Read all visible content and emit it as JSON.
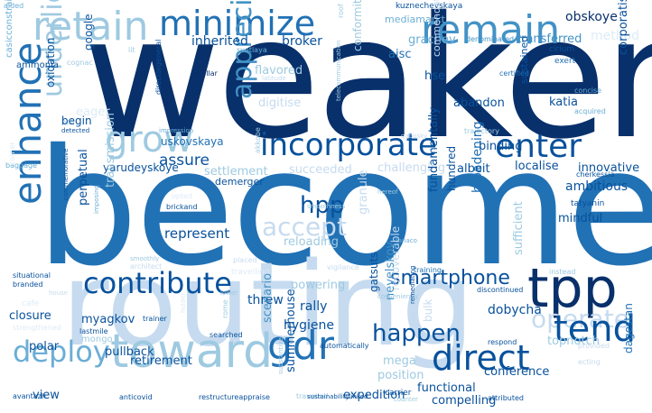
{
  "colors": {
    "background": "#ffffff",
    "deep": "#08306b",
    "strong": "#08519c",
    "mid": "#2171b5",
    "blue": "#4292c6",
    "soft": "#6baed6",
    "light": "#9ecae1",
    "pale": "#c6dbef",
    "faint": "#deebf7"
  },
  "words": {
    "weaken": "weaken",
    "become": "become",
    "routing": "routing",
    "retain": "retain",
    "minimize": "minimize",
    "remain": "remain",
    "grow": "grow",
    "incorporate": "incorporate",
    "enter": "enter",
    "tpp": "tpp",
    "tend": "tend",
    "gdr": "gdr",
    "toward": "toward",
    "deploy": "deploy",
    "direct": "direct",
    "happen": "happen",
    "contribute": "contribute",
    "smartphone": "smartphone",
    "hpp": "hpp",
    "enhance": "enhance",
    "accept": "accept",
    "operate": "operate",
    "underlie": "underlie",
    "appreciate": "appreciate"
  },
  "small_words": [
    "aided",
    "kuznechevskaya",
    "mediamarkt",
    "obskoye",
    "ammonia",
    "inherited",
    "broker",
    "svetlaya",
    "grachev",
    "transferred",
    "method",
    "denominated",
    "cirium",
    "flavored",
    "aisc",
    "conformity",
    "exert",
    "oxidation",
    "hse",
    "google",
    "cognac",
    "lit",
    "stellar",
    "latitude",
    "certified",
    "katia",
    "concise",
    "casicconstrained",
    "directorgeneral",
    "digitise",
    "commendation",
    "sustained",
    "corporatisation",
    "abandon",
    "acquired",
    "detected",
    "eager",
    "poll",
    "begin",
    "impression",
    "trajectory",
    "binding",
    "uskovskaya",
    "assure",
    "yarudeyskoye",
    "akkobe",
    "localise",
    "innovative",
    "cherkessia",
    "baggage",
    "settlement",
    "succeeded",
    "demerger",
    "albeit",
    "challenging",
    "ambitious",
    "corner",
    "mindful",
    "tatyanin",
    "commemorative",
    "perpetual",
    "opted",
    "brickand",
    "imposing",
    "transmission",
    "represent",
    "tanaco",
    "hereof",
    "fundamentally",
    "hundred",
    "broadening",
    "granule",
    "reloading",
    "situational",
    "architect",
    "vigilance",
    "branded",
    "placed",
    "travelling",
    "powering",
    "training",
    "discontinued",
    "sufficient",
    "instead",
    "threw",
    "gatsuts",
    "recoverable",
    "cafe",
    "closure",
    "trainer",
    "holder",
    "myagkov",
    "rally",
    "nevelskoy",
    "dobycha",
    "lastmile",
    "hygiene",
    "polar",
    "mongo",
    "scenario",
    "conveniently",
    "strengthened",
    "pullback",
    "searched",
    "automatically",
    "remediating",
    "topnotch",
    "respond",
    "retirement",
    "substantive",
    "mega",
    "position",
    "summerhouse",
    "conference",
    "ecting",
    "dagestan",
    "functional",
    "travelled",
    "carrier",
    "avantazh",
    "view",
    "anticovid",
    "restructureappraise",
    "sustainabilitylinked",
    "expedition",
    "compelling",
    "counter",
    "attributed",
    "telecommunication",
    "roof",
    "smoothly",
    "house",
    "lower",
    "rome",
    "bulk",
    "provided",
    "gabosky",
    "smoothness",
    "sample"
  ]
}
